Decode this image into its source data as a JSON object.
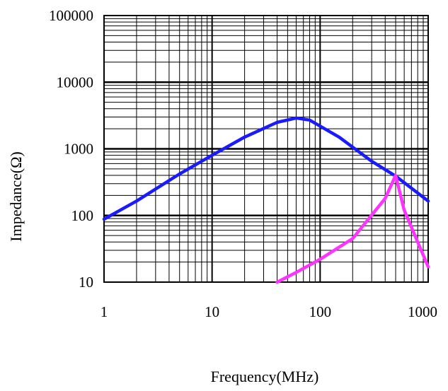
{
  "chart_data": {
    "type": "line",
    "xlabel": "Frequency(MHz)",
    "ylabel": "Impedance(Ω)",
    "x_scale": "log",
    "y_scale": "log",
    "xlim": [
      1,
      1000
    ],
    "ylim": [
      10,
      100000
    ],
    "grid": true,
    "x_ticks": [
      "1",
      "10",
      "100",
      "1000"
    ],
    "y_ticks": [
      "10",
      "100",
      "1000",
      "10000",
      "100000"
    ],
    "series": [
      {
        "color": "#1a1aff",
        "points": [
          [
            1,
            88
          ],
          [
            2,
            165
          ],
          [
            5,
            420
          ],
          [
            10,
            800
          ],
          [
            20,
            1500
          ],
          [
            40,
            2500
          ],
          [
            60,
            2900
          ],
          [
            80,
            2700
          ],
          [
            150,
            1500
          ],
          [
            300,
            650
          ],
          [
            500,
            390
          ],
          [
            1000,
            165
          ]
        ]
      },
      {
        "color": "#ff33ff",
        "points": [
          [
            40,
            10
          ],
          [
            60,
            14
          ],
          [
            100,
            22
          ],
          [
            200,
            45
          ],
          [
            400,
            180
          ],
          [
            500,
            400
          ],
          [
            600,
            120
          ],
          [
            1000,
            17
          ]
        ]
      }
    ]
  }
}
